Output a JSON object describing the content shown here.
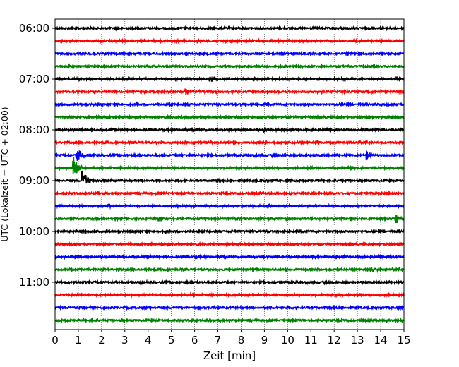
{
  "chart_data": {
    "type": "line",
    "title": "",
    "xlabel": "Zeit  [min]",
    "ylabel": "UTC (Lokalzeit = UTC + 02:00)",
    "xlim": [
      0,
      15
    ],
    "x_ticks": [
      "0",
      "1",
      "2",
      "3",
      "4",
      "5",
      "6",
      "7",
      "8",
      "9",
      "10",
      "11",
      "12",
      "13",
      "14",
      "15"
    ],
    "y_tick_labels": [
      "06:00",
      "07:00",
      "08:00",
      "09:00",
      "10:00",
      "11:00"
    ],
    "grid": "vertical dotted lines at each minute",
    "trace_interval_minutes": 15,
    "trace_start": "06:00",
    "trace_colors": [
      "#000000",
      "#ff0000",
      "#0000ff",
      "#008000"
    ],
    "traces": [
      {
        "start": "06:00",
        "color": "#000000",
        "events": []
      },
      {
        "start": "06:15",
        "color": "#ff0000",
        "events": []
      },
      {
        "start": "06:30",
        "color": "#0000ff",
        "events": []
      },
      {
        "start": "06:45",
        "color": "#008000",
        "events": []
      },
      {
        "start": "07:00",
        "color": "#000000",
        "events": [
          {
            "t": 6.75,
            "amp": 0.5
          }
        ]
      },
      {
        "start": "07:15",
        "color": "#ff0000",
        "events": [
          {
            "t": 5.6,
            "amp": 0.55
          }
        ]
      },
      {
        "start": "07:30",
        "color": "#0000ff",
        "events": []
      },
      {
        "start": "07:45",
        "color": "#008000",
        "events": []
      },
      {
        "start": "08:00",
        "color": "#000000",
        "events": [
          {
            "t": 9.0,
            "amp": 0.3
          }
        ]
      },
      {
        "start": "08:15",
        "color": "#ff0000",
        "events": []
      },
      {
        "start": "08:30",
        "color": "#0000ff",
        "events": [
          {
            "t": 0.95,
            "amp": 1.0
          },
          {
            "t": 13.4,
            "amp": 0.6
          }
        ]
      },
      {
        "start": "08:45",
        "color": "#008000",
        "events": [
          {
            "t": 0.8,
            "amp": 1.6
          }
        ]
      },
      {
        "start": "09:00",
        "color": "#000000",
        "events": [
          {
            "t": 1.2,
            "amp": 2.0
          }
        ]
      },
      {
        "start": "09:15",
        "color": "#ff0000",
        "events": []
      },
      {
        "start": "09:30",
        "color": "#0000ff",
        "events": [
          {
            "t": 2.3,
            "amp": 0.3
          }
        ]
      },
      {
        "start": "09:45",
        "color": "#008000",
        "events": [
          {
            "t": 14.7,
            "amp": 0.6
          }
        ]
      },
      {
        "start": "10:00",
        "color": "#000000",
        "events": []
      },
      {
        "start": "10:15",
        "color": "#ff0000",
        "events": []
      },
      {
        "start": "10:30",
        "color": "#0000ff",
        "events": []
      },
      {
        "start": "10:45",
        "color": "#008000",
        "events": [
          {
            "t": 13.6,
            "amp": 0.4
          }
        ]
      },
      {
        "start": "11:00",
        "color": "#000000",
        "events": []
      },
      {
        "start": "11:15",
        "color": "#ff0000",
        "events": []
      },
      {
        "start": "11:30",
        "color": "#0000ff",
        "events": []
      },
      {
        "start": "11:45",
        "color": "#008000",
        "events": []
      }
    ]
  }
}
